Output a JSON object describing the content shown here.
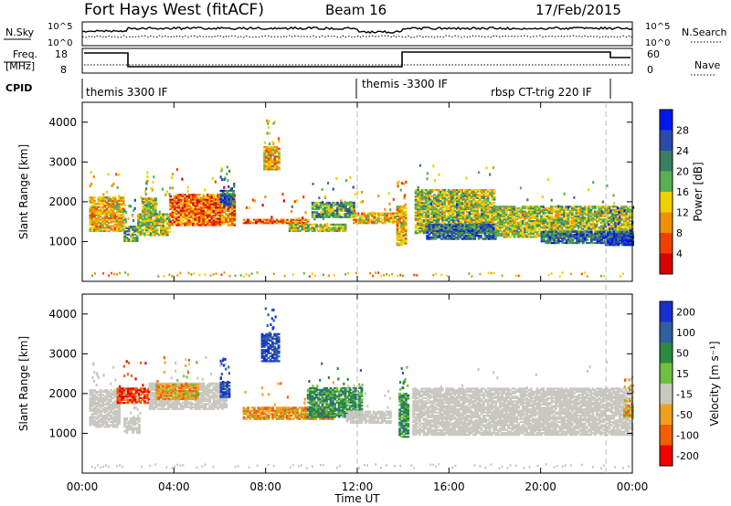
{
  "header": {
    "title": "Fort Hays West (fitACF)",
    "beam": "Beam 16",
    "date": "17/Feb/2015"
  },
  "top_panels": {
    "nsky_label": "N.Sky",
    "nsky_ticks": [
      "10^5",
      "10^0"
    ],
    "nsearch_label": "N.Search",
    "nsearch_ticks": [
      "10^5",
      "10^0"
    ],
    "freq_label_line1": "Freq.",
    "freq_label_line2": "[MHz]",
    "freq_ticks": [
      "18",
      "8"
    ],
    "nave_label": "Nave",
    "nave_ticks": [
      "60",
      "0"
    ],
    "cpid_label": "CPID",
    "cpid_segments": [
      {
        "label": "themis 3300 IF"
      },
      {
        "label": "themis -3300 IF"
      },
      {
        "label": "rbsp CT-trig 220 IF"
      }
    ]
  },
  "colors": {
    "frame": "#000000",
    "dashed_marker": "#bbbbbb",
    "ground_scatter": "#c8c8c0"
  },
  "chart_data": [
    {
      "type": "heatmap",
      "name": "power",
      "ylabel": "Slant Range [km]",
      "ylim": [
        0,
        4500
      ],
      "yticks": [
        1000,
        2000,
        3000,
        4000
      ],
      "colorbar": {
        "label": "Power [dB]",
        "ticks": [
          "4",
          "8",
          "12",
          "16",
          "20",
          "24",
          "28"
        ],
        "colors": [
          "#0018f0",
          "#2a4aa8",
          "#3a8060",
          "#58b050",
          "#f0d000",
          "#f09000",
          "#f04000",
          "#d80000"
        ]
      },
      "scatter_regions": [
        {
          "t0": 0.3,
          "t1": 1.8,
          "r0": 1250,
          "r1": 2100,
          "level": 3
        },
        {
          "t0": 1.8,
          "t1": 2.4,
          "r0": 1000,
          "r1": 1400,
          "level": 5
        },
        {
          "t0": 2.4,
          "t1": 3.8,
          "r0": 1150,
          "r1": 1700,
          "level": 4
        },
        {
          "t0": 2.6,
          "t1": 3.2,
          "r0": 1700,
          "r1": 2100,
          "level": 4
        },
        {
          "t0": 3.8,
          "t1": 6.6,
          "r0": 1400,
          "r1": 2200,
          "level": 2
        },
        {
          "t0": 6.0,
          "t1": 6.6,
          "r0": 1900,
          "r1": 2300,
          "level": 6
        },
        {
          "t0": 7.9,
          "t1": 8.6,
          "r0": 2800,
          "r1": 3400,
          "level": 3
        },
        {
          "t0": 7.0,
          "t1": 9.8,
          "r0": 1450,
          "r1": 1550,
          "level": 2
        },
        {
          "t0": 9.0,
          "t1": 11.5,
          "r0": 1250,
          "r1": 1450,
          "level": 4
        },
        {
          "t0": 10.0,
          "t1": 11.8,
          "r0": 1600,
          "r1": 2000,
          "level": 5
        },
        {
          "t0": 11.8,
          "t1": 13.6,
          "r0": 1450,
          "r1": 1700,
          "level": 3
        },
        {
          "t0": 13.7,
          "t1": 14.1,
          "r0": 900,
          "r1": 1900,
          "level": 3
        },
        {
          "t0": 14.5,
          "t1": 18.0,
          "r0": 1200,
          "r1": 2300,
          "level": 4
        },
        {
          "t0": 15.0,
          "t1": 18.0,
          "r0": 1050,
          "r1": 1450,
          "level": 6
        },
        {
          "t0": 18.0,
          "t1": 24.0,
          "r0": 1100,
          "r1": 1900,
          "level": 4
        },
        {
          "t0": 20.0,
          "t1": 24.0,
          "r0": 950,
          "r1": 1250,
          "level": 6
        },
        {
          "t0": 22.8,
          "t1": 24.0,
          "r0": 900,
          "r1": 1200,
          "level": 7
        }
      ]
    },
    {
      "type": "heatmap",
      "name": "velocity",
      "ylabel": "Slant Range [km]",
      "ylim": [
        0,
        4500
      ],
      "yticks": [
        1000,
        2000,
        3000,
        4000
      ],
      "colorbar": {
        "label": "Velocity [m s⁻¹]",
        "ticks": [
          "200",
          "100",
          "50",
          "15",
          "-15",
          "-50",
          "-100",
          "-200"
        ],
        "colors": [
          "#1830d0",
          "#3060a0",
          "#2a8a40",
          "#70c040",
          "#c8c8c0",
          "#f0a020",
          "#f06000",
          "#f00000"
        ]
      },
      "scatter_regions": [
        {
          "t0": 0.3,
          "t1": 1.6,
          "r0": 1150,
          "r1": 2100,
          "cls": "ground"
        },
        {
          "t0": 1.5,
          "t1": 2.9,
          "r0": 1750,
          "r1": 2150,
          "cls": "neg_strong"
        },
        {
          "t0": 1.8,
          "t1": 2.5,
          "r0": 1000,
          "r1": 1400,
          "cls": "ground"
        },
        {
          "t0": 2.9,
          "t1": 6.3,
          "r0": 1600,
          "r1": 2250,
          "cls": "ground"
        },
        {
          "t0": 3.2,
          "t1": 5.0,
          "r0": 1850,
          "r1": 2250,
          "cls": "neg_mid"
        },
        {
          "t0": 6.0,
          "t1": 6.4,
          "r0": 1900,
          "r1": 2300,
          "cls": "pos_strong"
        },
        {
          "t0": 7.8,
          "t1": 8.6,
          "r0": 2800,
          "r1": 3500,
          "cls": "pos_strong"
        },
        {
          "t0": 7.0,
          "t1": 11.0,
          "r0": 1350,
          "r1": 1650,
          "cls": "neg_mid"
        },
        {
          "t0": 9.8,
          "t1": 12.2,
          "r0": 1400,
          "r1": 2150,
          "cls": "pos_weak"
        },
        {
          "t0": 11.5,
          "t1": 13.4,
          "r0": 1250,
          "r1": 1550,
          "cls": "ground"
        },
        {
          "t0": 13.8,
          "t1": 14.2,
          "r0": 900,
          "r1": 2000,
          "cls": "pos_weak"
        },
        {
          "t0": 14.4,
          "t1": 24.0,
          "r0": 950,
          "r1": 2150,
          "cls": "ground"
        },
        {
          "t0": 23.6,
          "t1": 24.0,
          "r0": 1400,
          "r1": 1700,
          "cls": "neg_mid"
        }
      ]
    }
  ],
  "x_axis": {
    "label": "Time UT",
    "ticks": [
      "00:00",
      "04:00",
      "08:00",
      "12:00",
      "16:00",
      "20:00",
      "00:00"
    ],
    "tick_hours": [
      0,
      4,
      8,
      12,
      16,
      20,
      24
    ],
    "cpid_change_hours": [
      12.0,
      22.85
    ]
  }
}
